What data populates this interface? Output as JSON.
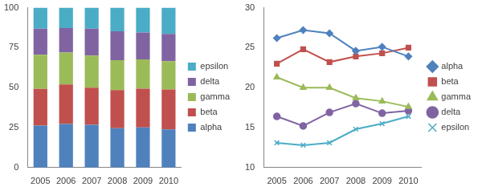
{
  "chart_data": [
    {
      "type": "bar",
      "stacked": true,
      "grid": false,
      "legend": "right",
      "categories": [
        "2005",
        "2006",
        "2007",
        "2008",
        "2009",
        "2010"
      ],
      "ylim": [
        0,
        100
      ],
      "yticks": [
        0,
        25,
        50,
        75,
        100
      ],
      "series": [
        {
          "name": "alpha",
          "color": "#4f81bd",
          "values": [
            26.2,
            27.2,
            26.8,
            24.6,
            25.1,
            23.9
          ]
        },
        {
          "name": "beta",
          "color": "#c0504d",
          "values": [
            23.0,
            24.8,
            23.2,
            23.9,
            24.3,
            25.0
          ]
        },
        {
          "name": "gamma",
          "color": "#9bbb59",
          "values": [
            21.3,
            20.0,
            20.0,
            18.7,
            18.3,
            17.6
          ]
        },
        {
          "name": "delta",
          "color": "#8064a2",
          "values": [
            16.4,
            15.2,
            16.9,
            18.0,
            16.8,
            17.1
          ]
        },
        {
          "name": "epsilon",
          "color": "#4bacc6",
          "values": [
            13.1,
            12.8,
            13.1,
            14.8,
            15.5,
            16.4
          ]
        }
      ]
    },
    {
      "type": "line",
      "grid": false,
      "legend": "right",
      "categories": [
        "2005",
        "2006",
        "2007",
        "2008",
        "2009",
        "2010"
      ],
      "ylim": [
        10,
        30
      ],
      "yticks": [
        10,
        15,
        20,
        25,
        30
      ],
      "series": [
        {
          "name": "alpha",
          "color": "#4f81bd",
          "marker": "diamond",
          "values": [
            26.2,
            27.2,
            26.8,
            24.6,
            25.1,
            23.9
          ]
        },
        {
          "name": "beta",
          "color": "#c0504d",
          "marker": "square",
          "values": [
            23.0,
            24.8,
            23.2,
            23.9,
            24.3,
            25.0
          ]
        },
        {
          "name": "gamma",
          "color": "#9bbb59",
          "marker": "triangle",
          "values": [
            21.3,
            20.0,
            20.0,
            18.7,
            18.3,
            17.6
          ]
        },
        {
          "name": "delta",
          "color": "#8064a2",
          "marker": "circle",
          "values": [
            16.4,
            15.2,
            16.9,
            18.0,
            16.8,
            17.1
          ]
        },
        {
          "name": "epsilon",
          "color": "#4bacc6",
          "marker": "x",
          "values": [
            13.1,
            12.8,
            13.1,
            14.8,
            15.5,
            16.4
          ]
        }
      ]
    }
  ]
}
